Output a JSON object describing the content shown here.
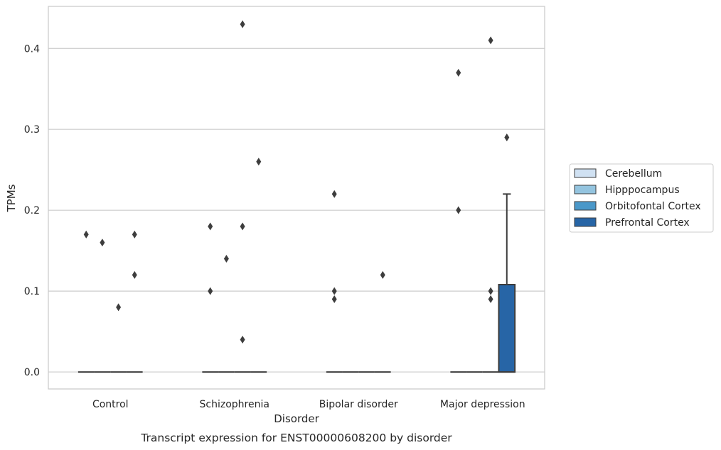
{
  "chart_data": {
    "type": "box",
    "caption": "Transcript expression for ENST00000608200 by disorder",
    "xlabel": "Disorder",
    "ylabel": "TPMs",
    "ylim": [
      -0.021,
      0.452
    ],
    "yticks": [
      0.0,
      0.1,
      0.2,
      0.3,
      0.4
    ],
    "ytick_labels": [
      "0.0",
      "0.1",
      "0.2",
      "0.3",
      "0.4"
    ],
    "grid": "horizontal",
    "legend_position": "right",
    "categories": [
      "Control",
      "Schizophrenia",
      "Bipolar disorder",
      "Major depression"
    ],
    "series": [
      {
        "name": "Cerebellum",
        "color": "#d0e1f2",
        "boxes": [
          {
            "category": "Control",
            "q1": 0,
            "median": 0,
            "q3": 0,
            "whisker_low": 0,
            "whisker_high": 0,
            "outliers": [
              0.17
            ]
          },
          {
            "category": "Schizophrenia",
            "q1": 0,
            "median": 0,
            "q3": 0,
            "whisker_low": 0,
            "whisker_high": 0,
            "outliers": [
              0.1,
              0.18
            ]
          },
          {
            "category": "Bipolar disorder",
            "q1": 0,
            "median": 0,
            "q3": 0,
            "whisker_low": 0,
            "whisker_high": 0,
            "outliers": [
              0.09,
              0.1,
              0.22
            ]
          },
          {
            "category": "Major depression",
            "q1": 0,
            "median": 0,
            "q3": 0,
            "whisker_low": 0,
            "whisker_high": 0,
            "outliers": [
              0.2,
              0.37
            ]
          }
        ]
      },
      {
        "name": "Hipppocampus",
        "color": "#94c4df",
        "boxes": [
          {
            "category": "Control",
            "q1": 0,
            "median": 0,
            "q3": 0,
            "whisker_low": 0,
            "whisker_high": 0,
            "outliers": [
              0.16
            ]
          },
          {
            "category": "Schizophrenia",
            "q1": 0,
            "median": 0,
            "q3": 0,
            "whisker_low": 0,
            "whisker_high": 0,
            "outliers": [
              0.14
            ]
          },
          {
            "category": "Bipolar disorder",
            "q1": 0,
            "median": 0,
            "q3": 0,
            "whisker_low": 0,
            "whisker_high": 0,
            "outliers": []
          },
          {
            "category": "Major depression",
            "q1": 0,
            "median": 0,
            "q3": 0,
            "whisker_low": 0,
            "whisker_high": 0,
            "outliers": []
          }
        ]
      },
      {
        "name": "Orbitofontal Cortex",
        "color": "#4a98c9",
        "boxes": [
          {
            "category": "Control",
            "q1": 0,
            "median": 0,
            "q3": 0,
            "whisker_low": 0,
            "whisker_high": 0,
            "outliers": [
              0.08
            ]
          },
          {
            "category": "Schizophrenia",
            "q1": 0,
            "median": 0,
            "q3": 0,
            "whisker_low": 0,
            "whisker_high": 0,
            "outliers": [
              0.43,
              0.18,
              0.04
            ]
          },
          {
            "category": "Bipolar disorder",
            "q1": 0,
            "median": 0,
            "q3": 0,
            "whisker_low": 0,
            "whisker_high": 0,
            "outliers": []
          },
          {
            "category": "Major depression",
            "q1": 0,
            "median": 0,
            "q3": 0,
            "whisker_low": 0,
            "whisker_high": 0,
            "outliers": [
              0.41,
              0.1,
              0.09
            ]
          }
        ]
      },
      {
        "name": "Prefrontal Cortex",
        "color": "#2765a6",
        "boxes": [
          {
            "category": "Control",
            "q1": 0,
            "median": 0,
            "q3": 0,
            "whisker_low": 0,
            "whisker_high": 0,
            "outliers": [
              0.17,
              0.12
            ]
          },
          {
            "category": "Schizophrenia",
            "q1": 0,
            "median": 0,
            "q3": 0,
            "whisker_low": 0,
            "whisker_high": 0,
            "outliers": [
              0.26
            ]
          },
          {
            "category": "Bipolar disorder",
            "q1": 0,
            "median": 0,
            "q3": 0,
            "whisker_low": 0,
            "whisker_high": 0,
            "outliers": [
              0.12
            ]
          },
          {
            "category": "Major depression",
            "q1": 0,
            "median": 0,
            "q3": 0.108,
            "whisker_low": 0,
            "whisker_high": 0.22,
            "outliers": [
              0.29
            ]
          }
        ]
      }
    ]
  }
}
